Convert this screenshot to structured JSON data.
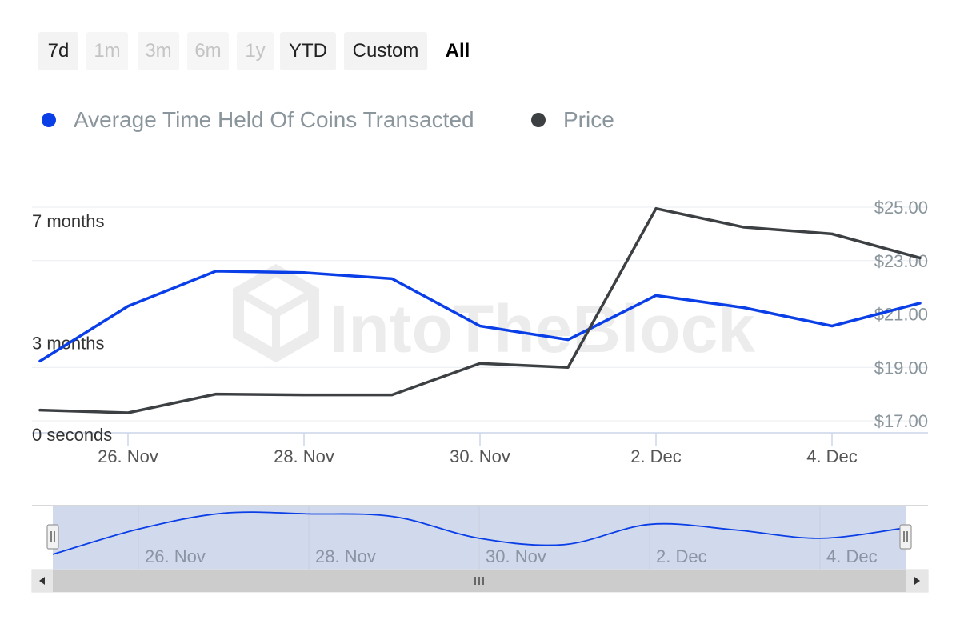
{
  "range_selector": {
    "buttons": [
      {
        "label": "7d",
        "state": "enabled"
      },
      {
        "label": "1m",
        "state": "disabled"
      },
      {
        "label": "3m",
        "state": "disabled"
      },
      {
        "label": "6m",
        "state": "disabled"
      },
      {
        "label": "1y",
        "state": "disabled"
      },
      {
        "label": "YTD",
        "state": "enabled"
      },
      {
        "label": "Custom",
        "state": "enabled"
      },
      {
        "label": "All",
        "state": "active"
      }
    ]
  },
  "legend": {
    "items": [
      {
        "label": "Average Time Held Of Coins Transacted",
        "color": "#0a3ee6"
      },
      {
        "label": "Price",
        "color": "#3d4043"
      }
    ]
  },
  "watermark": "IntoTheBlock",
  "chart_data": {
    "type": "line",
    "x": [
      "2022-11-25",
      "2022-11-26",
      "2022-11-27",
      "2022-11-28",
      "2022-11-29",
      "2022-11-30",
      "2022-12-01",
      "2022-12-02",
      "2022-12-03",
      "2022-12-04",
      "2022-12-05"
    ],
    "x_tick_labels": [
      "26. Nov",
      "28. Nov",
      "30. Nov",
      "2. Dec",
      "4. Dec"
    ],
    "y_left": {
      "unit": "months",
      "range": [
        0,
        7
      ],
      "tick_labels": [
        "0 seconds",
        "3 months",
        "7 months"
      ],
      "tick_values": [
        0,
        3,
        7
      ]
    },
    "y_right": {
      "unit": "USD",
      "range": [
        17,
        25
      ],
      "tick_labels": [
        "$17.00",
        "$19.00",
        "$21.00",
        "$23.00",
        "$25.00"
      ],
      "tick_values": [
        17,
        19,
        21,
        23,
        25
      ]
    },
    "series": [
      {
        "name": "Average Time Held Of Coins Transacted",
        "axis": "left",
        "color": "#0a3ee6",
        "values": [
          2.35,
          4.15,
          5.3,
          5.25,
          5.05,
          3.5,
          3.05,
          4.5,
          4.1,
          3.5,
          4.25
        ]
      },
      {
        "name": "Price",
        "axis": "right",
        "color": "#3d4043",
        "values": [
          17.4,
          17.3,
          18.0,
          17.97,
          17.97,
          19.15,
          19.0,
          24.95,
          24.25,
          24.0,
          23.1
        ]
      }
    ],
    "grid": true,
    "legend_position": "top-left"
  },
  "navigator": {
    "tick_labels": [
      "26. Nov",
      "28. Nov",
      "30. Nov",
      "2. Dec",
      "4. Dec"
    ],
    "selection": "full range",
    "scroll_left_icon": "triangle-left",
    "scroll_right_icon": "triangle-right",
    "scroll_grip_icon": "grip-lines"
  }
}
